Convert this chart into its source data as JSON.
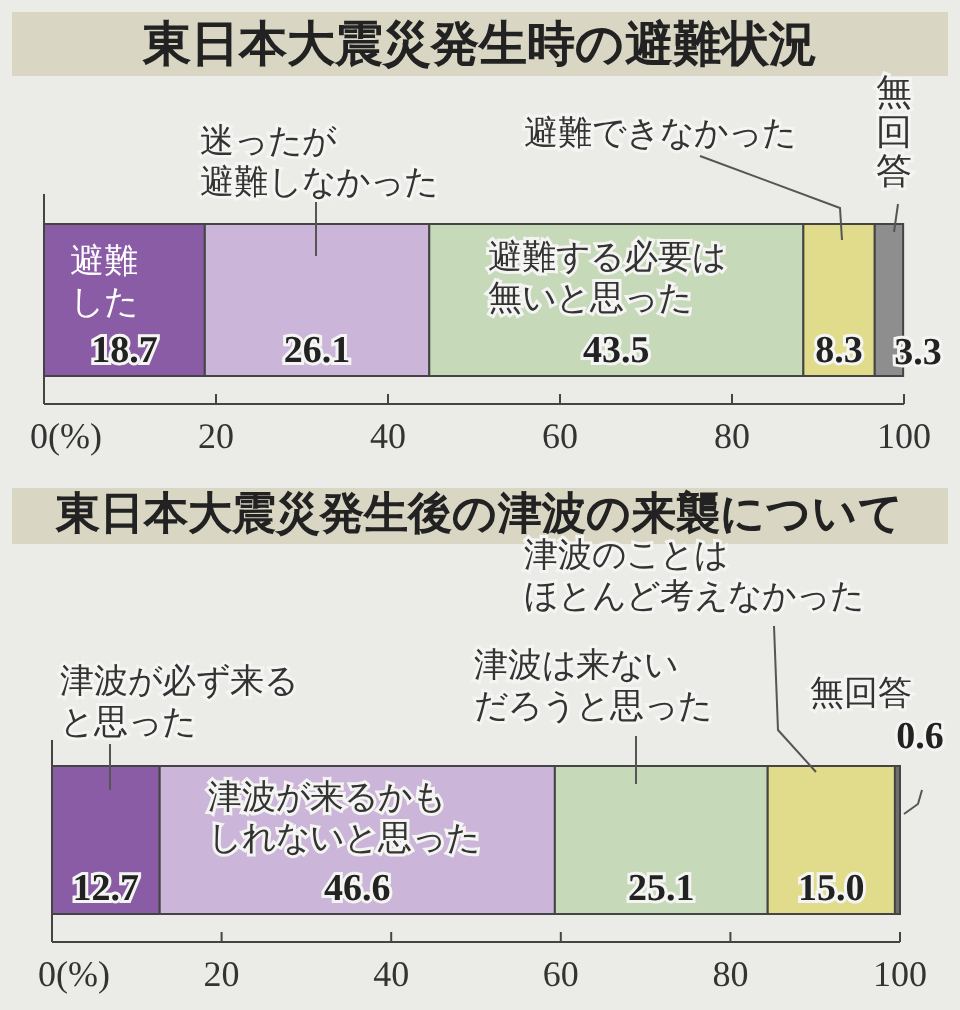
{
  "chart_data": [
    {
      "type": "bar",
      "orientation": "horizontal",
      "stacked": true,
      "title": "東日本大震災発生時の避難状況",
      "categories": [
        null
      ],
      "xlim": [
        0,
        100
      ],
      "xticks": [
        {
          "value": 0,
          "label": "0(%)"
        },
        20,
        40,
        60,
        80,
        100
      ],
      "series": [
        {
          "name": "避難した",
          "color": "#8a5ca6",
          "values": [
            18.7
          ],
          "value_labels": [
            "18.7"
          ]
        },
        {
          "name": "迷ったが避難しなかった",
          "color": "#cbb6da",
          "values": [
            26.1
          ],
          "value_labels": [
            "26.1"
          ]
        },
        {
          "name": "避難する必要は無いと思った",
          "color": "#c6d9b8",
          "values": [
            43.5
          ],
          "value_labels": [
            "43.5"
          ]
        },
        {
          "name": "避難できなかった",
          "color": "#e0dc8c",
          "values": [
            8.3
          ],
          "value_labels": [
            "8.3"
          ]
        },
        {
          "name": "無回答",
          "color": "#8e8e8e",
          "values": [
            3.3
          ],
          "value_labels": [
            "3.3"
          ]
        }
      ]
    },
    {
      "type": "bar",
      "orientation": "horizontal",
      "stacked": true,
      "title": "東日本大震災発生後の津波の来襲について",
      "categories": [
        null
      ],
      "xlim": [
        0,
        100
      ],
      "xticks": [
        {
          "value": 0,
          "label": "0(%)"
        },
        20,
        40,
        60,
        80,
        100
      ],
      "series": [
        {
          "name": "津波が必ず来ると思った",
          "color": "#8a5ca6",
          "values": [
            12.7
          ],
          "value_labels": [
            "12.7"
          ]
        },
        {
          "name": "津波が来るかもしれないと思った",
          "color": "#cbb6da",
          "values": [
            46.6
          ],
          "value_labels": [
            "46.6"
          ]
        },
        {
          "name": "津波は来ないだろうと思った",
          "color": "#c6d9b8",
          "values": [
            25.1
          ],
          "value_labels": [
            "25.1"
          ]
        },
        {
          "name": "津波のことはほとんど考えなかった",
          "color": "#e0dc8c",
          "values": [
            15.0
          ],
          "value_labels": [
            "15.0"
          ]
        },
        {
          "name": "無回答",
          "color": "#6e6e6e",
          "values": [
            0.6
          ],
          "value_labels": [
            "0.6"
          ]
        }
      ]
    }
  ]
}
